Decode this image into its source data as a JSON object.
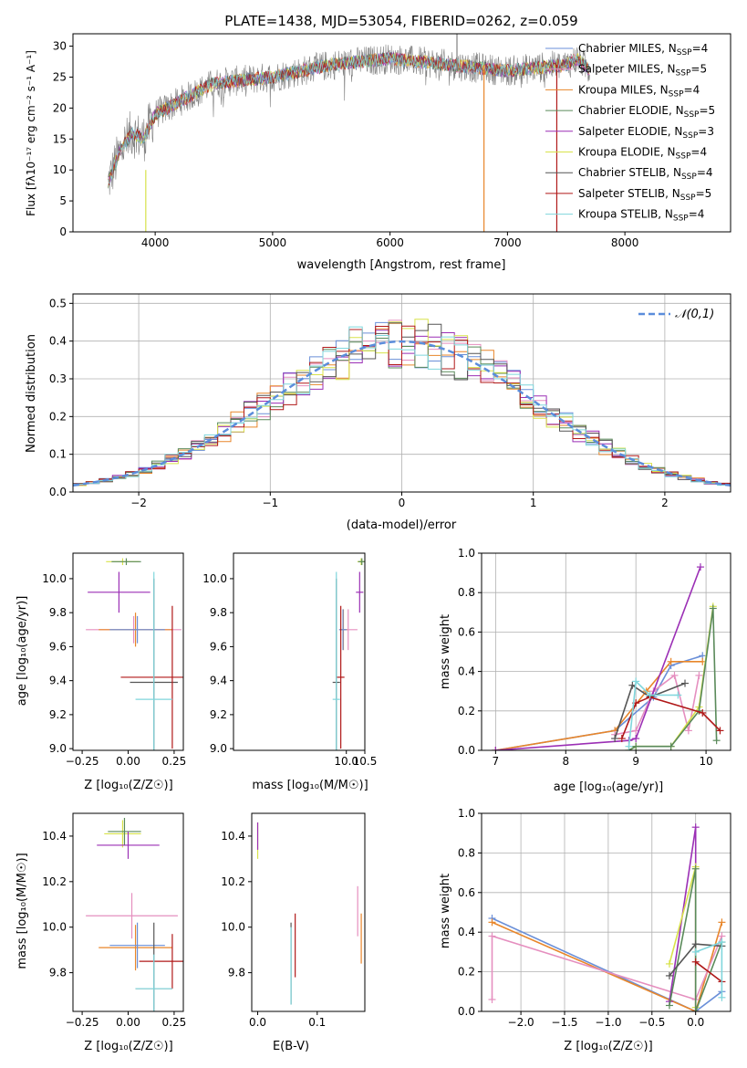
{
  "colors": {
    "chabrier_miles": "#6a8fd8",
    "salpeter_miles": "#e58fbf",
    "kroupa_miles": "#e8862a",
    "chabrier_elodie": "#5a8a5a",
    "salpeter_elodie": "#9b2fb5",
    "kroupa_elodie": "#d8e24a",
    "chabrier_stelib": "#555555",
    "salpeter_stelib": "#b01818",
    "kroupa_stelib": "#7fd6dc",
    "data": "#808080",
    "gauss": "#5b8ddb"
  },
  "legend_series": [
    {
      "key": "chabrier_miles",
      "name": "Chabrier MILES, N",
      "sub": "SSP",
      "suffix": "=4"
    },
    {
      "key": "salpeter_miles",
      "name": "Salpeter MILES, N",
      "sub": "SSP",
      "suffix": "=5"
    },
    {
      "key": "kroupa_miles",
      "name": "Kroupa MILES, N",
      "sub": "SSP",
      "suffix": "=4"
    },
    {
      "key": "chabrier_elodie",
      "name": "Chabrier ELODIE, N",
      "sub": "SSP",
      "suffix": "=5"
    },
    {
      "key": "salpeter_elodie",
      "name": "Salpeter ELODIE, N",
      "sub": "SSP",
      "suffix": "=3"
    },
    {
      "key": "kroupa_elodie",
      "name": "Kroupa ELODIE, N",
      "sub": "SSP",
      "suffix": "=4"
    },
    {
      "key": "chabrier_stelib",
      "name": "Chabrier STELIB, N",
      "sub": "SSP",
      "suffix": "=4"
    },
    {
      "key": "salpeter_stelib",
      "name": "Salpeter STELIB, N",
      "sub": "SSP",
      "suffix": "=5"
    },
    {
      "key": "kroupa_stelib",
      "name": "Kroupa STELIB, N",
      "sub": "SSP",
      "suffix": "=4"
    }
  ],
  "chart_data": [
    {
      "type": "line",
      "title": "PLATE=1438, MJD=53054, FIBERID=0262, z=0.059",
      "xlabel": "wavelength [Angstrom, rest frame]",
      "ylabel": "Flux [fλ10⁻¹⁷ erg cm⁻² s⁻¹ A⁻¹]",
      "xlim": [
        3300,
        8900
      ],
      "ylim": [
        0,
        32
      ],
      "xticks": [
        4000,
        5000,
        6000,
        7000,
        8000
      ],
      "yticks": [
        0,
        5,
        10,
        15,
        20,
        25,
        30
      ],
      "legend_placement": "right",
      "spectrum_anchors": [
        [
          3600,
          8
        ],
        [
          3700,
          13
        ],
        [
          3800,
          16
        ],
        [
          3900,
          15
        ],
        [
          4000,
          19
        ],
        [
          4200,
          21
        ],
        [
          4500,
          24
        ],
        [
          5000,
          25
        ],
        [
          5500,
          27
        ],
        [
          6000,
          28
        ],
        [
          6500,
          27
        ],
        [
          7000,
          26
        ],
        [
          7500,
          27
        ],
        [
          7600,
          28
        ],
        [
          7700,
          26
        ]
      ],
      "vertical_spikes": [
        {
          "x": 3920,
          "from": 0,
          "to": 10,
          "series": "kroupa_elodie"
        },
        {
          "x": 6800,
          "from": 0,
          "to": 27,
          "series": "kroupa_miles"
        },
        {
          "x": 7420,
          "from": 0,
          "to": 27,
          "series": "salpeter_stelib"
        },
        {
          "x": 6570,
          "from": 26,
          "to": 32,
          "series": "data"
        }
      ]
    },
    {
      "type": "histogram",
      "xlabel": "(data-model)/error",
      "ylabel": "Normed distribution",
      "xlim": [
        -2.5,
        2.5
      ],
      "ylim": [
        0,
        0.525
      ],
      "xticks": [
        -2,
        -1,
        0,
        1,
        2
      ],
      "yticks": [
        0,
        0.1,
        0.2,
        0.3,
        0.4,
        0.5
      ],
      "bin_width": 0.1,
      "legend_label": "𝒩(0,1)",
      "legend_placement": "top-right"
    },
    {
      "type": "scatter",
      "xlabel": "Z [log₁₀(Z/Z☉)]",
      "ylabel": "age  [log₁₀(age/yr)]",
      "xlim": [
        -0.3,
        0.3
      ],
      "ylim": [
        8.99,
        10.15
      ],
      "xticks": [
        -0.25,
        0.0,
        0.25
      ],
      "yticks": [
        9.0,
        9.2,
        9.4,
        9.6,
        9.8,
        10.0
      ],
      "points": [
        {
          "series": "kroupa_elodie",
          "x": -0.03,
          "y": 10.1,
          "xerr": 0.09,
          "yerr": 0.02
        },
        {
          "series": "chabrier_elodie",
          "x": -0.01,
          "y": 10.1,
          "xerr": 0.08,
          "yerr": 0.02
        },
        {
          "series": "salpeter_elodie",
          "x": -0.05,
          "y": 9.92,
          "xerr": 0.17,
          "yerr": 0.12
        },
        {
          "series": "salpeter_miles",
          "x": 0.03,
          "y": 9.7,
          "xerr": 0.26,
          "yerr": 0.08
        },
        {
          "series": "kroupa_miles",
          "x": 0.04,
          "y": 9.7,
          "xerr": 0.2,
          "yerr": 0.1
        },
        {
          "series": "chabrier_miles",
          "x": 0.05,
          "y": 9.7,
          "xerr": 0.15,
          "yerr": 0.08
        },
        {
          "series": "chabrier_stelib",
          "x": 0.14,
          "y": 9.39,
          "xerr": 0.13,
          "yerr": 0.61
        },
        {
          "series": "salpeter_stelib",
          "x": 0.24,
          "y": 9.42,
          "xerr": 0.28,
          "yerr": 0.42
        },
        {
          "series": "kroupa_stelib",
          "x": 0.14,
          "y": 9.29,
          "xerr": 0.1,
          "yerr": 0.75
        }
      ]
    },
    {
      "type": "scatter",
      "xlabel": "mass [log₁₀(M/M☉)]",
      "ylabel": "",
      "xlim": [
        6.95,
        10.5
      ],
      "ylim": [
        8.99,
        10.15
      ],
      "xticks": [
        7.5,
        8.0,
        8.5,
        9.0,
        9.5,
        10.0,
        10.5
      ],
      "xticklabels": [
        "",
        "",
        "",
        "",
        "",
        "10.0",
        "10.5"
      ],
      "xticks_shown": [
        10.0,
        10.5
      ],
      "yticks": [
        9.0,
        9.2,
        9.4,
        9.6,
        9.8,
        10.0
      ],
      "points": [
        {
          "series": "kroupa_elodie",
          "x": 10.4,
          "y": 10.1,
          "xerr": 0.1,
          "yerr": 0.02
        },
        {
          "series": "chabrier_elodie",
          "x": 10.42,
          "y": 10.1,
          "xerr": 0.1,
          "yerr": 0.02
        },
        {
          "series": "salpeter_elodie",
          "x": 10.36,
          "y": 9.92,
          "xerr": 0.1,
          "yerr": 0.12
        },
        {
          "series": "salpeter_miles",
          "x": 10.05,
          "y": 9.7,
          "xerr": 0.25,
          "yerr": 0.12
        },
        {
          "series": "kroupa_miles",
          "x": 9.92,
          "y": 9.7,
          "xerr": 0.1,
          "yerr": 0.12
        },
        {
          "series": "chabrier_miles",
          "x": 9.91,
          "y": 9.7,
          "xerr": 0.1,
          "yerr": 0.12
        },
        {
          "series": "chabrier_stelib",
          "x": 9.73,
          "y": 9.39,
          "xerr": 0.1,
          "yerr": 0.61
        },
        {
          "series": "salpeter_stelib",
          "x": 9.85,
          "y": 9.42,
          "xerr": 0.1,
          "yerr": 0.42
        },
        {
          "series": "kroupa_stelib",
          "x": 9.73,
          "y": 9.29,
          "xerr": 0.1,
          "yerr": 0.75
        }
      ]
    },
    {
      "type": "line",
      "xlabel": "age  [log₁₀(age/yr)]",
      "ylabel": "mass weight",
      "xlim": [
        6.8,
        10.35
      ],
      "ylim": [
        0,
        1.0
      ],
      "xticks": [
        7,
        8,
        9,
        10
      ],
      "yticks": [
        0.0,
        0.2,
        0.4,
        0.6,
        0.8,
        1.0
      ],
      "series": [
        {
          "key": "chabrier_miles",
          "points": [
            [
              7.0,
              0.0
            ],
            [
              8.7,
              0.1
            ],
            [
              9.25,
              0.27
            ],
            [
              9.5,
              0.43
            ],
            [
              9.95,
              0.48
            ]
          ]
        },
        {
          "key": "kroupa_miles",
          "points": [
            [
              7.0,
              0.0
            ],
            [
              8.7,
              0.1
            ],
            [
              9.15,
              0.3
            ],
            [
              9.5,
              0.45
            ],
            [
              9.95,
              0.45
            ]
          ]
        },
        {
          "key": "salpeter_miles",
          "points": [
            [
              8.7,
              0.08
            ],
            [
              9.0,
              0.1
            ],
            [
              9.25,
              0.3
            ],
            [
              9.55,
              0.38
            ],
            [
              9.75,
              0.1
            ],
            [
              9.9,
              0.38
            ]
          ]
        },
        {
          "key": "salpeter_elodie",
          "points": [
            [
              7.0,
              0.0
            ],
            [
              8.9,
              0.05
            ],
            [
              9.0,
              0.06
            ],
            [
              9.92,
              0.93
            ]
          ]
        },
        {
          "key": "kroupa_elodie",
          "points": [
            [
              8.9,
              0.0
            ],
            [
              9.0,
              0.02
            ],
            [
              9.5,
              0.02
            ],
            [
              9.9,
              0.22
            ],
            [
              10.1,
              0.73
            ]
          ]
        },
        {
          "key": "chabrier_elodie",
          "points": [
            [
              8.9,
              0.0
            ],
            [
              9.0,
              0.02
            ],
            [
              9.5,
              0.02
            ],
            [
              9.9,
              0.2
            ],
            [
              10.1,
              0.72
            ],
            [
              10.15,
              0.05
            ]
          ]
        },
        {
          "key": "chabrier_stelib",
          "points": [
            [
              8.7,
              0.06
            ],
            [
              8.95,
              0.33
            ],
            [
              9.2,
              0.27
            ],
            [
              9.7,
              0.34
            ]
          ]
        },
        {
          "key": "salpeter_stelib",
          "points": [
            [
              8.8,
              0.06
            ],
            [
              9.0,
              0.24
            ],
            [
              9.2,
              0.27
            ],
            [
              9.95,
              0.19
            ],
            [
              10.2,
              0.1
            ]
          ]
        },
        {
          "key": "kroupa_stelib",
          "points": [
            [
              8.9,
              0.02
            ],
            [
              9.0,
              0.35
            ],
            [
              9.2,
              0.28
            ],
            [
              9.6,
              0.28
            ]
          ]
        }
      ]
    },
    {
      "type": "scatter",
      "xlabel": "Z [log₁₀(Z/Z☉)]",
      "ylabel": "mass [log₁₀(M/M☉)]",
      "xlim": [
        -0.3,
        0.3
      ],
      "ylim": [
        9.63,
        10.5
      ],
      "xticks": [
        -0.25,
        0.0,
        0.25
      ],
      "yticks": [
        9.8,
        10.0,
        10.2,
        10.4
      ],
      "points": [
        {
          "series": "kroupa_elodie",
          "x": -0.03,
          "y": 10.41,
          "xerr": 0.1,
          "yerr": 0.06
        },
        {
          "series": "chabrier_elodie",
          "x": -0.02,
          "y": 10.42,
          "xerr": 0.09,
          "yerr": 0.06
        },
        {
          "series": "salpeter_elodie",
          "x": 0.0,
          "y": 10.36,
          "xerr": 0.17,
          "yerr": 0.06
        },
        {
          "series": "salpeter_miles",
          "x": 0.02,
          "y": 10.05,
          "xerr": 0.25,
          "yerr": 0.1
        },
        {
          "series": "kroupa_miles",
          "x": 0.04,
          "y": 9.91,
          "xerr": 0.2,
          "yerr": 0.1
        },
        {
          "series": "chabrier_miles",
          "x": 0.05,
          "y": 9.92,
          "xerr": 0.15,
          "yerr": 0.1
        },
        {
          "series": "chabrier_stelib",
          "x": 0.14,
          "y": 9.73,
          "xerr": 0.1,
          "yerr": 0.29
        },
        {
          "series": "salpeter_stelib",
          "x": 0.24,
          "y": 9.85,
          "xerr": 0.18,
          "yerr": 0.12
        },
        {
          "series": "kroupa_stelib",
          "x": 0.14,
          "y": 9.73,
          "xerr": 0.1,
          "yerr": 0.15
        }
      ]
    },
    {
      "type": "scatter",
      "xlabel": "E(B-V)",
      "ylabel": "",
      "xlim": [
        -0.01,
        0.18
      ],
      "ylim": [
        9.63,
        10.5
      ],
      "xticks": [
        0.0,
        0.1
      ],
      "yticks": [
        9.8,
        10.0,
        10.2,
        10.4
      ],
      "points": [
        {
          "series": "kroupa_elodie",
          "x": 0.0,
          "y": 10.38,
          "yerr": 0.08
        },
        {
          "series": "salpeter_elodie",
          "x": 0.0,
          "y": 10.4,
          "yerr": 0.06
        },
        {
          "series": "chabrier_stelib",
          "x": 0.056,
          "y": 9.84,
          "yerr": 0.18
        },
        {
          "series": "kroupa_stelib",
          "x": 0.056,
          "y": 9.83,
          "yerr": 0.17
        },
        {
          "series": "salpeter_stelib",
          "x": 0.063,
          "y": 9.92,
          "yerr": 0.14
        },
        {
          "series": "salpeter_miles",
          "x": 0.168,
          "y": 10.07,
          "yerr": 0.11
        },
        {
          "series": "kroupa_miles",
          "x": 0.174,
          "y": 9.95,
          "yerr": 0.11
        }
      ]
    },
    {
      "type": "line",
      "xlabel": "Z [log₁₀(Z/Z☉)]",
      "ylabel": "mass weight",
      "xlim": [
        -2.45,
        0.4
      ],
      "ylim": [
        0,
        1.0
      ],
      "xticks": [
        -2.0,
        -1.5,
        -1.0,
        -0.5,
        0.0
      ],
      "yticks": [
        0.0,
        0.2,
        0.4,
        0.6,
        0.8,
        1.0
      ],
      "series": [
        {
          "key": "chabrier_miles",
          "points": [
            [
              -2.33,
              0.47
            ],
            [
              0.0,
              0.0
            ],
            [
              0.3,
              0.1
            ]
          ]
        },
        {
          "key": "kroupa_miles",
          "points": [
            [
              -2.33,
              0.45
            ],
            [
              0.0,
              0.0
            ],
            [
              0.3,
              0.45
            ]
          ]
        },
        {
          "key": "salpeter_miles",
          "points": [
            [
              -2.33,
              0.06
            ],
            [
              -2.33,
              0.38
            ],
            [
              0.0,
              0.06
            ],
            [
              0.3,
              0.38
            ]
          ]
        },
        {
          "key": "salpeter_elodie",
          "points": [
            [
              -0.3,
              0.05
            ],
            [
              0.0,
              0.93
            ],
            [
              0.0,
              0.0
            ]
          ]
        },
        {
          "key": "kroupa_elodie",
          "points": [
            [
              -0.3,
              0.24
            ],
            [
              0.0,
              0.73
            ],
            [
              0.0,
              0.02
            ]
          ]
        },
        {
          "key": "chabrier_elodie",
          "points": [
            [
              -0.3,
              0.03
            ],
            [
              0.0,
              0.72
            ],
            [
              0.0,
              0.0
            ],
            [
              0.3,
              0.35
            ]
          ]
        },
        {
          "key": "chabrier_stelib",
          "points": [
            [
              -0.3,
              0.18
            ],
            [
              0.0,
              0.34
            ],
            [
              0.3,
              0.33
            ]
          ]
        },
        {
          "key": "salpeter_stelib",
          "points": [
            [
              0.0,
              0.25
            ],
            [
              0.3,
              0.15
            ]
          ]
        },
        {
          "key": "kroupa_stelib",
          "points": [
            [
              0.0,
              0.3
            ],
            [
              0.3,
              0.35
            ],
            [
              0.3,
              0.07
            ]
          ]
        }
      ]
    }
  ]
}
